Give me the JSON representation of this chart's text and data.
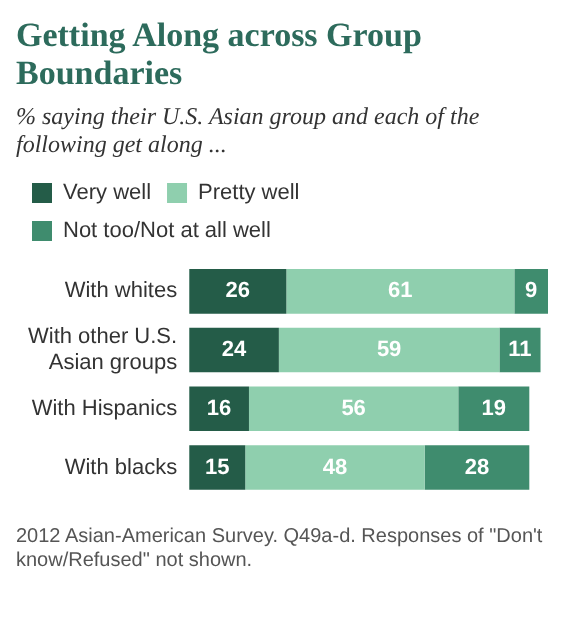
{
  "chart_data": {
    "type": "bar",
    "orientation": "horizontal",
    "stacked": true,
    "title": "Getting Along across Group Boundaries",
    "subtitle": "% saying their U.S. Asian group and each of the following get along ...",
    "categories": [
      "With whites",
      "With other U.S. Asian groups",
      "With Hispanics",
      "With blacks"
    ],
    "series": [
      {
        "name": "Very well",
        "color": "#245c48",
        "values": [
          26,
          24,
          16,
          15
        ]
      },
      {
        "name": "Pretty well",
        "color": "#8fcfae",
        "values": [
          61,
          59,
          56,
          48
        ]
      },
      {
        "name": "Not too/Not at all well",
        "color": "#3f8c6e",
        "values": [
          9,
          11,
          19,
          28
        ]
      }
    ],
    "data_labels": true,
    "legend": "top",
    "grid": false,
    "annotations": [
      "2012 Asian-American Survey. Q49a-d. Responses of \"Don't know/Refused\" not shown."
    ]
  }
}
